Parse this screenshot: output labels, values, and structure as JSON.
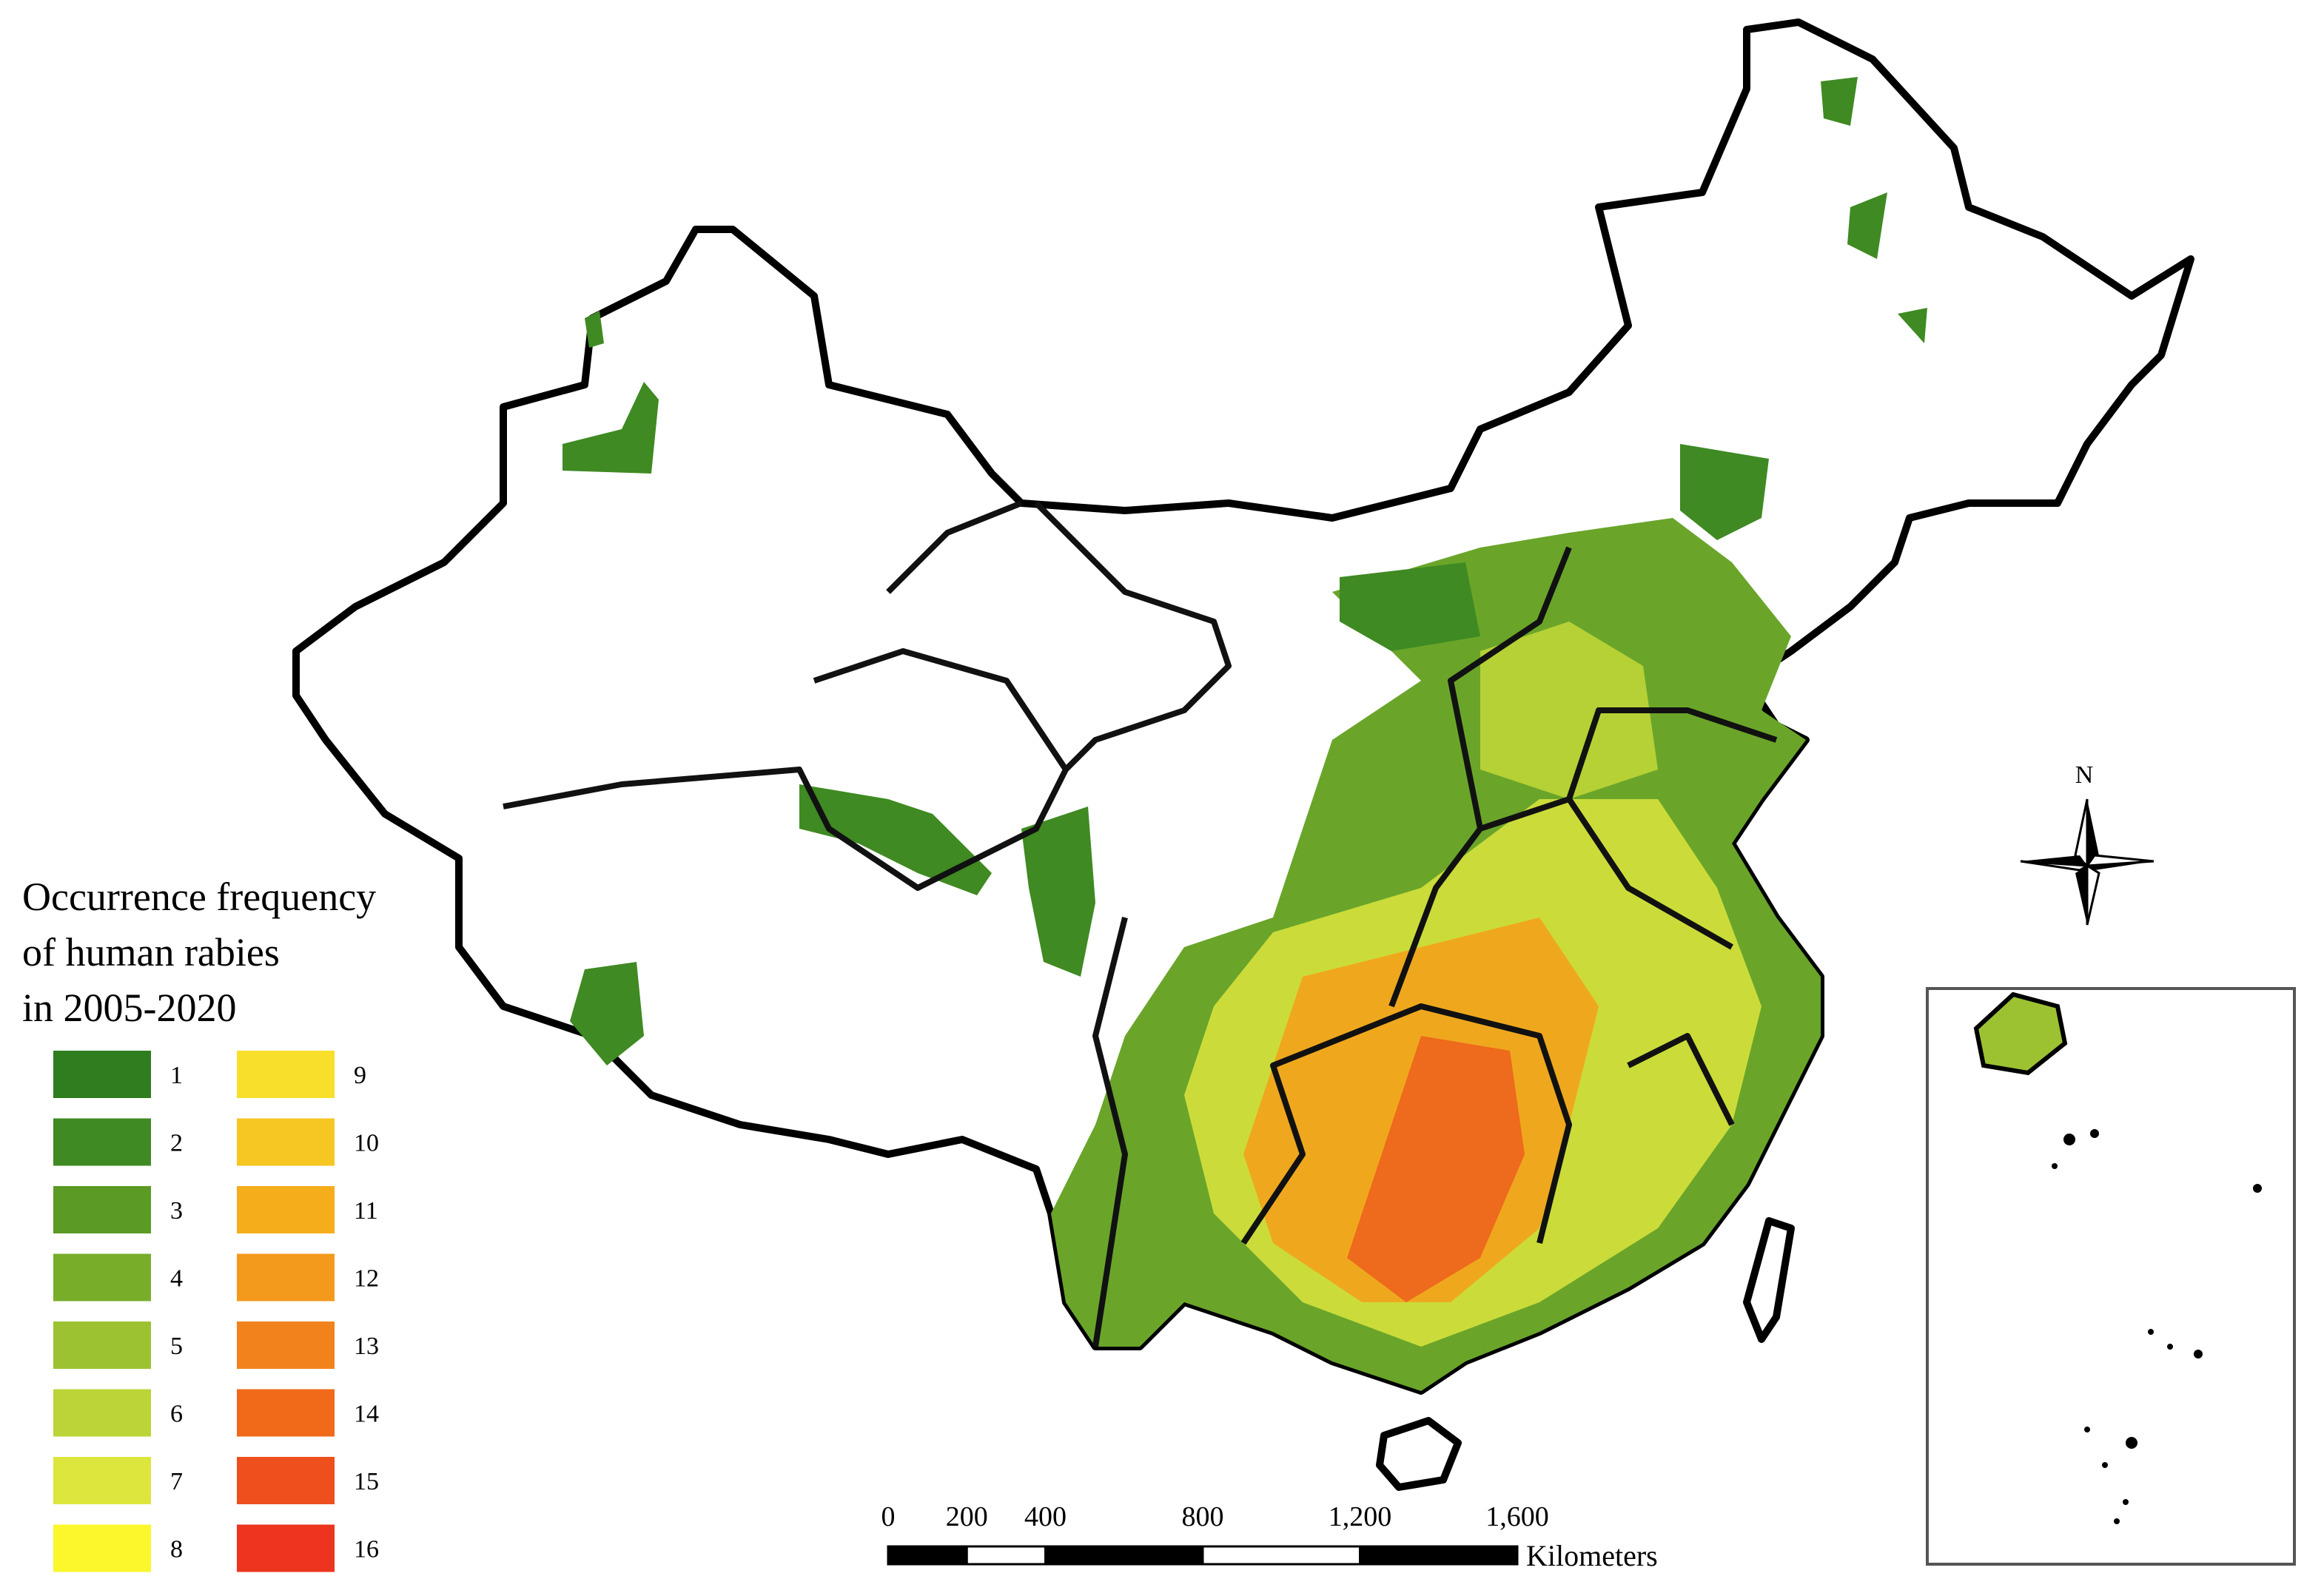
{
  "legend": {
    "title": [
      "Occurrence frequency",
      "of human rabies",
      "in 2005-2020"
    ],
    "items": [
      {
        "label": "1",
        "color": "#2e7d1e"
      },
      {
        "label": "2",
        "color": "#3f8a22"
      },
      {
        "label": "3",
        "color": "#5a9a25"
      },
      {
        "label": "4",
        "color": "#78ad2a"
      },
      {
        "label": "5",
        "color": "#9cc232"
      },
      {
        "label": "6",
        "color": "#bdd438"
      },
      {
        "label": "7",
        "color": "#dde63c"
      },
      {
        "label": "8",
        "color": "#fbf72c"
      },
      {
        "label": "9",
        "color": "#f8df2a"
      },
      {
        "label": "10",
        "color": "#f6c622"
      },
      {
        "label": "11",
        "color": "#f5ad1c"
      },
      {
        "label": "12",
        "color": "#f39a1c"
      },
      {
        "label": "13",
        "color": "#f2821c"
      },
      {
        "label": "14",
        "color": "#f06a1a"
      },
      {
        "label": "15",
        "color": "#ee4f1c"
      },
      {
        "label": "16",
        "color": "#ec341e"
      }
    ]
  },
  "scale_bar": {
    "ticks": [
      0,
      200,
      400,
      800,
      {
        "value": 1200,
        "label": "1,200"
      },
      {
        "value": 1600,
        "label": "1,600"
      }
    ],
    "unit": "Kilometers"
  },
  "north_arrow": {
    "label": "N"
  }
}
